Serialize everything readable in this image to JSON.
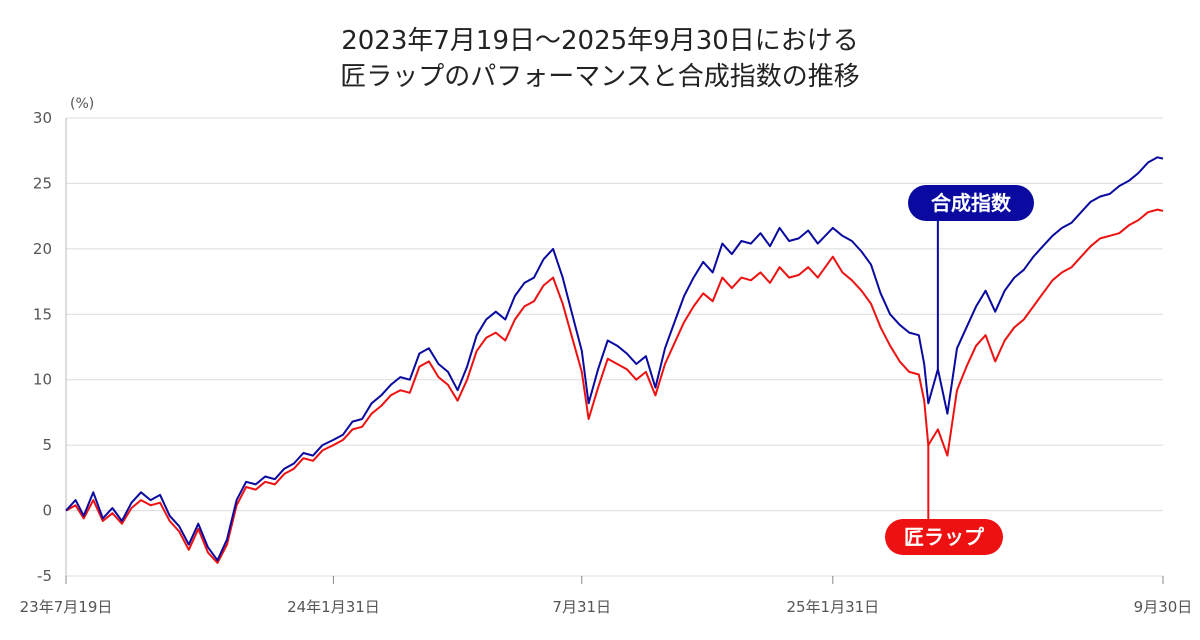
{
  "title_line1": "2023年7月19日～2025年9月30日における",
  "title_line2": "匠ラップのパフォーマンスと合成指数の推移",
  "colors": {
    "composite": "#0a0aa0",
    "takumi": "#ee1111",
    "grid": "#dcdcdc",
    "axis": "#bbbbbb"
  },
  "chart_data": {
    "type": "line",
    "y_unit": "(%)",
    "ylim": [
      -5,
      30
    ],
    "y_ticks": [
      30,
      25,
      20,
      15,
      10,
      5,
      0,
      -5
    ],
    "y_tick_labels": [
      "30",
      "25",
      "20",
      "15",
      "10",
      "5",
      "0",
      "-5"
    ],
    "xlim": [
      "2023-07-19",
      "2025-09-30"
    ],
    "x_ticks": [
      "2023-07-19",
      "2024-01-31",
      "2024-07-31",
      "2025-01-31",
      "2025-09-30"
    ],
    "x_tick_labels": [
      "23年7月19日",
      "24年1月31日",
      "7月31日",
      "25年1月31日",
      "9月30日"
    ],
    "grid": true,
    "series": [
      {
        "name": "合成指数",
        "key": "composite",
        "x": [
          "2023-07-19",
          "2023-07-26",
          "2023-08-01",
          "2023-08-08",
          "2023-08-15",
          "2023-08-22",
          "2023-08-29",
          "2023-09-05",
          "2023-09-12",
          "2023-09-19",
          "2023-09-26",
          "2023-10-03",
          "2023-10-10",
          "2023-10-17",
          "2023-10-24",
          "2023-10-31",
          "2023-11-07",
          "2023-11-14",
          "2023-11-21",
          "2023-11-28",
          "2023-12-05",
          "2023-12-12",
          "2023-12-19",
          "2023-12-26",
          "2024-01-02",
          "2024-01-09",
          "2024-01-16",
          "2024-01-23",
          "2024-01-31",
          "2024-02-07",
          "2024-02-14",
          "2024-02-21",
          "2024-02-28",
          "2024-03-06",
          "2024-03-13",
          "2024-03-20",
          "2024-03-27",
          "2024-04-03",
          "2024-04-10",
          "2024-04-17",
          "2024-04-24",
          "2024-05-01",
          "2024-05-08",
          "2024-05-15",
          "2024-05-22",
          "2024-05-29",
          "2024-06-05",
          "2024-06-12",
          "2024-06-19",
          "2024-06-26",
          "2024-07-03",
          "2024-07-10",
          "2024-07-17",
          "2024-07-24",
          "2024-07-31",
          "2024-08-05",
          "2024-08-12",
          "2024-08-19",
          "2024-08-26",
          "2024-09-02",
          "2024-09-09",
          "2024-09-16",
          "2024-09-23",
          "2024-09-30",
          "2024-10-07",
          "2024-10-14",
          "2024-10-21",
          "2024-10-28",
          "2024-11-04",
          "2024-11-11",
          "2024-11-18",
          "2024-11-25",
          "2024-12-02",
          "2024-12-09",
          "2024-12-16",
          "2024-12-23",
          "2024-12-30",
          "2025-01-06",
          "2025-01-13",
          "2025-01-20",
          "2025-01-31",
          "2025-02-07",
          "2025-02-14",
          "2025-02-21",
          "2025-02-28",
          "2025-03-07",
          "2025-03-14",
          "2025-03-21",
          "2025-03-28",
          "2025-04-04",
          "2025-04-08",
          "2025-04-11",
          "2025-04-18",
          "2025-04-25",
          "2025-05-02",
          "2025-05-09",
          "2025-05-16",
          "2025-05-23",
          "2025-05-30",
          "2025-06-06",
          "2025-06-13",
          "2025-06-20",
          "2025-06-27",
          "2025-07-04",
          "2025-07-11",
          "2025-07-18",
          "2025-07-25",
          "2025-08-01",
          "2025-08-08",
          "2025-08-15",
          "2025-08-22",
          "2025-08-29",
          "2025-09-05",
          "2025-09-12",
          "2025-09-19",
          "2025-09-26",
          "2025-09-30"
        ],
        "values": [
          0.0,
          0.8,
          -0.4,
          1.4,
          -0.6,
          0.2,
          -0.8,
          0.6,
          1.4,
          0.8,
          1.2,
          -0.4,
          -1.2,
          -2.6,
          -1.0,
          -2.8,
          -3.8,
          -2.2,
          0.8,
          2.2,
          2.0,
          2.6,
          2.4,
          3.2,
          3.6,
          4.4,
          4.2,
          5.0,
          5.4,
          5.8,
          6.8,
          7.0,
          8.2,
          8.8,
          9.6,
          10.2,
          10.0,
          12.0,
          12.4,
          11.2,
          10.6,
          9.2,
          11.0,
          13.4,
          14.6,
          15.2,
          14.6,
          16.4,
          17.4,
          17.8,
          19.2,
          20.0,
          17.8,
          15.0,
          12.2,
          8.2,
          10.8,
          13.0,
          12.6,
          12.0,
          11.2,
          11.8,
          9.4,
          12.4,
          14.4,
          16.4,
          17.8,
          19.0,
          18.2,
          20.4,
          19.6,
          20.6,
          20.4,
          21.2,
          20.2,
          21.6,
          20.6,
          20.8,
          21.4,
          20.4,
          21.6,
          21.0,
          20.6,
          19.8,
          18.8,
          16.6,
          15.0,
          14.2,
          13.6,
          13.4,
          11.2,
          8.2,
          10.8,
          7.4,
          12.4,
          14.0,
          15.6,
          16.8,
          15.2,
          16.8,
          17.8,
          18.4,
          19.4,
          20.2,
          21.0,
          21.6,
          22.0,
          22.8,
          23.6,
          24.0,
          24.2,
          24.8,
          25.2,
          25.8,
          26.6,
          27.0,
          26.9
        ]
      },
      {
        "name": "匠ラップ",
        "key": "takumi",
        "x": [
          "2023-07-19",
          "2023-07-26",
          "2023-08-01",
          "2023-08-08",
          "2023-08-15",
          "2023-08-22",
          "2023-08-29",
          "2023-09-05",
          "2023-09-12",
          "2023-09-19",
          "2023-09-26",
          "2023-10-03",
          "2023-10-10",
          "2023-10-17",
          "2023-10-24",
          "2023-10-31",
          "2023-11-07",
          "2023-11-14",
          "2023-11-21",
          "2023-11-28",
          "2023-12-05",
          "2023-12-12",
          "2023-12-19",
          "2023-12-26",
          "2024-01-02",
          "2024-01-09",
          "2024-01-16",
          "2024-01-23",
          "2024-01-31",
          "2024-02-07",
          "2024-02-14",
          "2024-02-21",
          "2024-02-28",
          "2024-03-06",
          "2024-03-13",
          "2024-03-20",
          "2024-03-27",
          "2024-04-03",
          "2024-04-10",
          "2024-04-17",
          "2024-04-24",
          "2024-05-01",
          "2024-05-08",
          "2024-05-15",
          "2024-05-22",
          "2024-05-29",
          "2024-06-05",
          "2024-06-12",
          "2024-06-19",
          "2024-06-26",
          "2024-07-03",
          "2024-07-10",
          "2024-07-17",
          "2024-07-24",
          "2024-07-31",
          "2024-08-05",
          "2024-08-12",
          "2024-08-19",
          "2024-08-26",
          "2024-09-02",
          "2024-09-09",
          "2024-09-16",
          "2024-09-23",
          "2024-09-30",
          "2024-10-07",
          "2024-10-14",
          "2024-10-21",
          "2024-10-28",
          "2024-11-04",
          "2024-11-11",
          "2024-11-18",
          "2024-11-25",
          "2024-12-02",
          "2024-12-09",
          "2024-12-16",
          "2024-12-23",
          "2024-12-30",
          "2025-01-06",
          "2025-01-13",
          "2025-01-20",
          "2025-01-31",
          "2025-02-07",
          "2025-02-14",
          "2025-02-21",
          "2025-02-28",
          "2025-03-07",
          "2025-03-14",
          "2025-03-21",
          "2025-03-28",
          "2025-04-04",
          "2025-04-08",
          "2025-04-11",
          "2025-04-18",
          "2025-04-25",
          "2025-05-02",
          "2025-05-09",
          "2025-05-16",
          "2025-05-23",
          "2025-05-30",
          "2025-06-06",
          "2025-06-13",
          "2025-06-20",
          "2025-06-27",
          "2025-07-04",
          "2025-07-11",
          "2025-07-18",
          "2025-07-25",
          "2025-08-01",
          "2025-08-08",
          "2025-08-15",
          "2025-08-22",
          "2025-08-29",
          "2025-09-05",
          "2025-09-12",
          "2025-09-19",
          "2025-09-26",
          "2025-09-30"
        ],
        "values": [
          0.0,
          0.4,
          -0.6,
          0.8,
          -0.8,
          -0.2,
          -1.0,
          0.2,
          0.8,
          0.4,
          0.6,
          -0.8,
          -1.6,
          -3.0,
          -1.4,
          -3.2,
          -4.0,
          -2.6,
          0.4,
          1.8,
          1.6,
          2.2,
          2.0,
          2.8,
          3.2,
          4.0,
          3.8,
          4.6,
          5.0,
          5.4,
          6.2,
          6.4,
          7.4,
          8.0,
          8.8,
          9.2,
          9.0,
          11.0,
          11.4,
          10.2,
          9.6,
          8.4,
          10.0,
          12.2,
          13.2,
          13.6,
          13.0,
          14.6,
          15.6,
          16.0,
          17.2,
          17.8,
          15.8,
          13.2,
          10.6,
          7.0,
          9.4,
          11.6,
          11.2,
          10.8,
          10.0,
          10.6,
          8.8,
          11.2,
          12.8,
          14.4,
          15.6,
          16.6,
          16.0,
          17.8,
          17.0,
          17.8,
          17.6,
          18.2,
          17.4,
          18.6,
          17.8,
          18.0,
          18.6,
          17.8,
          19.4,
          18.2,
          17.6,
          16.8,
          15.8,
          14.0,
          12.6,
          11.4,
          10.6,
          10.4,
          8.4,
          5.0,
          6.2,
          4.2,
          9.2,
          11.0,
          12.6,
          13.4,
          11.4,
          13.0,
          14.0,
          14.6,
          15.6,
          16.6,
          17.6,
          18.2,
          18.6,
          19.4,
          20.2,
          20.8,
          21.0,
          21.2,
          21.8,
          22.2,
          22.8,
          23.0,
          22.9
        ]
      }
    ],
    "annotations": [
      {
        "text": "合成指数",
        "series": "composite",
        "x": "2025-04-18"
      },
      {
        "text": "匠ラップ",
        "series": "takumi",
        "x": "2025-04-11"
      }
    ]
  }
}
